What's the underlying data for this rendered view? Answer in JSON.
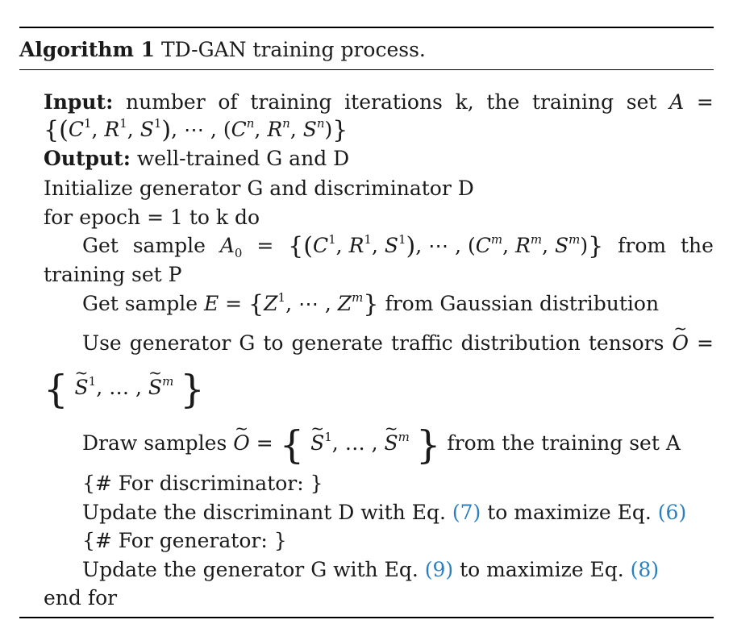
{
  "algorithm": {
    "label": "Algorithm 1",
    "title": "TD-GAN training process."
  },
  "lines": {
    "input_label": "Input:",
    "input_words": [
      "number",
      "of",
      "training",
      "iterations",
      "k,",
      "the",
      "training",
      "set"
    ],
    "input_var": "A",
    "output_label": "Output:",
    "output_text": "well-trained G and D",
    "init": "Initialize generator G and discriminator D",
    "for_head": "for epoch = 1 to k do",
    "get_sample_a0": {
      "w1": "Get",
      "w2": "sample",
      "from": "from",
      "the": "the",
      "cont": "training set P"
    },
    "get_sample_e": {
      "prefix": "Get sample",
      "suffix": "from Gaussian distribution"
    },
    "use_generator_words": [
      "Use",
      "generator",
      "G",
      "to",
      "generate",
      "traffic",
      "distribution",
      "tensors"
    ],
    "draw_samples": {
      "prefix": "Draw samples",
      "suffix": "from the training set A"
    },
    "comment_disc": "{# For discriminator: }",
    "update_disc": {
      "prefix": "Update the discriminant D with Eq.",
      "ref1": "(7)",
      "middle": "to maximize Eq.",
      "ref2": "(6)"
    },
    "comment_gen": "{# For generator: }",
    "update_gen": {
      "prefix": "Update the generator G with Eq.",
      "ref1": "(9)",
      "middle": "to maximize Eq.",
      "ref2": "(8)"
    },
    "end_for": "end for"
  },
  "colors": {
    "link": "#2a7fbf",
    "rule": "#000000"
  }
}
